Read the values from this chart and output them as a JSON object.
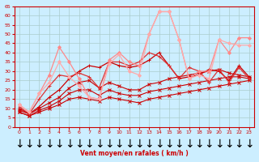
{
  "xlabel": "Vent moyen/en rafales ( km/h )",
  "bg_color": "#cceeff",
  "grid_color": "#aacccc",
  "x": [
    0,
    1,
    2,
    3,
    4,
    5,
    6,
    7,
    8,
    9,
    10,
    11,
    12,
    13,
    14,
    15,
    16,
    17,
    18,
    19,
    20,
    21,
    22,
    23
  ],
  "ylim": [
    0,
    65
  ],
  "yticks": [
    0,
    5,
    10,
    15,
    20,
    25,
    30,
    35,
    40,
    45,
    50,
    55,
    60,
    65
  ],
  "series": [
    {
      "y": [
        8,
        6,
        8,
        10,
        12,
        15,
        16,
        15,
        14,
        16,
        15,
        14,
        13,
        15,
        16,
        17,
        18,
        19,
        20,
        21,
        22,
        23,
        24,
        25
      ],
      "color": "#cc0000",
      "lw": 0.8,
      "marker": "x",
      "ms": 2.5
    },
    {
      "y": [
        8,
        6,
        9,
        11,
        14,
        18,
        20,
        20,
        17,
        20,
        18,
        17,
        17,
        19,
        20,
        21,
        22,
        23,
        24,
        25,
        26,
        27,
        27,
        26
      ],
      "color": "#cc0000",
      "lw": 0.8,
      "marker": "x",
      "ms": 2.5
    },
    {
      "y": [
        9,
        7,
        10,
        13,
        16,
        21,
        24,
        25,
        21,
        24,
        22,
        20,
        20,
        23,
        24,
        26,
        27,
        28,
        29,
        30,
        31,
        29,
        28,
        27
      ],
      "color": "#cc0000",
      "lw": 0.8,
      "marker": "x",
      "ms": 2.5
    },
    {
      "y": [
        10,
        7,
        11,
        16,
        20,
        26,
        30,
        33,
        32,
        35,
        33,
        32,
        33,
        36,
        40,
        33,
        26,
        27,
        28,
        31,
        30,
        25,
        33,
        27
      ],
      "color": "#cc0000",
      "lw": 0.9,
      "marker": "+",
      "ms": 3
    },
    {
      "y": [
        11,
        7,
        15,
        22,
        28,
        27,
        29,
        27,
        21,
        35,
        35,
        33,
        35,
        40,
        38,
        33,
        26,
        32,
        30,
        24,
        31,
        24,
        32,
        26
      ],
      "color": "#dd3333",
      "lw": 0.9,
      "marker": "+",
      "ms": 3
    },
    {
      "y": [
        12,
        8,
        18,
        28,
        43,
        35,
        26,
        16,
        15,
        36,
        40,
        35,
        33,
        50,
        62,
        62,
        47,
        26,
        30,
        30,
        47,
        40,
        48,
        48
      ],
      "color": "#ff8888",
      "lw": 0.9,
      "marker": "D",
      "ms": 2
    },
    {
      "y": [
        12,
        8,
        18,
        24,
        35,
        27,
        22,
        16,
        15,
        34,
        39,
        30,
        28,
        50,
        62,
        62,
        47,
        26,
        28,
        26,
        47,
        45,
        44,
        44
      ],
      "color": "#ffaaaa",
      "lw": 0.9,
      "marker": "D",
      "ms": 2
    }
  ],
  "arrow_color": "#cc0000",
  "tick_color": "#cc0000",
  "label_color": "#cc0000",
  "spine_color": "#cc0000"
}
